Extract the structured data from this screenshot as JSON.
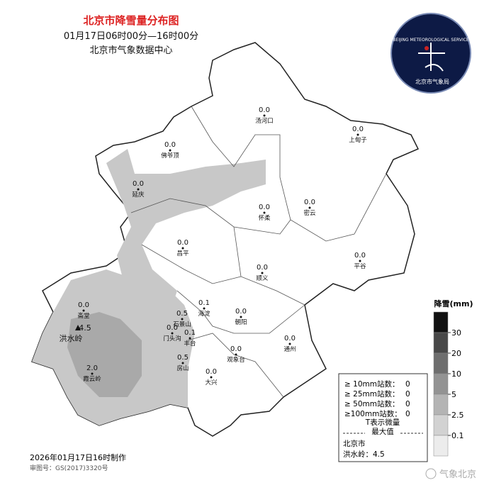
{
  "header": {
    "title": "北京市降雪量分布图",
    "period": "01月17日06时00分—16时00分",
    "source": "北京市气象数据中心"
  },
  "logo": {
    "text": "BEIJING METEOROLOGICAL SERVICE",
    "cn": "北京市气象局"
  },
  "stations": [
    {
      "name": "汤河口",
      "value": "0.0"
    },
    {
      "name": "上甸子",
      "value": "0.0"
    },
    {
      "name": "佛爷顶",
      "value": "0.0"
    },
    {
      "name": "延庆",
      "value": "0.0"
    },
    {
      "name": "怀柔",
      "value": "0.0"
    },
    {
      "name": "密云",
      "value": "0.0"
    },
    {
      "name": "昌平",
      "value": "0.0"
    },
    {
      "name": "平谷",
      "value": "0.0"
    },
    {
      "name": "顺义",
      "value": "0.0"
    },
    {
      "name": "海淀",
      "value": "0.1"
    },
    {
      "name": "斋堂",
      "value": "0.0"
    },
    {
      "name": "朝阳",
      "value": "0.0"
    },
    {
      "name": "石景山",
      "value": "0.5"
    },
    {
      "name": "门头沟",
      "value": "0.0"
    },
    {
      "name": "丰台",
      "value": "0.1"
    },
    {
      "name": "洪水岭",
      "value": "4.5"
    },
    {
      "name": "观象台",
      "value": "0.0"
    },
    {
      "name": "通州",
      "value": "0.0"
    },
    {
      "name": "房山",
      "value": "0.5"
    },
    {
      "name": "霞云岭",
      "value": "2.0"
    },
    {
      "name": "大兴",
      "value": "0.0"
    }
  ],
  "legend": {
    "title": "降雪(mm)",
    "levels": [
      "30",
      "20",
      "10",
      "5",
      "2.5",
      "0.1"
    ]
  },
  "stats": {
    "lines": [
      {
        "label": "≥ 10mm站数：",
        "value": "0"
      },
      {
        "label": "≥ 25mm站数：",
        "value": "0"
      },
      {
        "label": "≥ 50mm站数：",
        "value": "0"
      },
      {
        "label": "≥100mm站数：",
        "value": "0"
      }
    ],
    "note": "T表示微量",
    "max_title": "最大值",
    "max_region": "北京市",
    "max_station": "洪水岭：4.5"
  },
  "footer": {
    "made": "2026年01月17日16时制作",
    "review": "审图号：GS(2017)3320号",
    "watermark": "气象北京"
  }
}
